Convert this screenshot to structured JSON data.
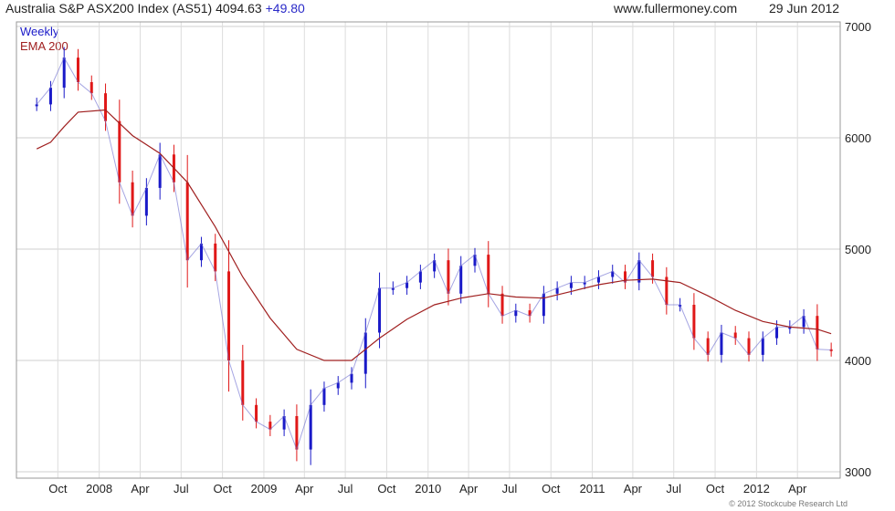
{
  "header": {
    "title": "Australia S&P ASX200 Index (AS51) 4094.63",
    "change": "+49.80",
    "site": "www.fullermoney.com",
    "date": "29 Jun 2012",
    "title_color": "#222222",
    "change_color": "#2a2ac8"
  },
  "legend": {
    "weekly": "Weekly",
    "weekly_color": "#1a1ac8",
    "ema": "EMA 200",
    "ema_color": "#a02020"
  },
  "copyright": "© 2012 Stockcube Research Ltd",
  "chart_data": {
    "type": "line",
    "subtype": "weekly candlestick chart with EMA 200 overlay",
    "title": "Australia S&P ASX200 Index (AS51) 4094.63 +49.80",
    "x_tick_labels": [
      "Oct",
      "2008",
      "Apr",
      "Jul",
      "Oct",
      "2009",
      "Apr",
      "Jul",
      "Oct",
      "2010",
      "Apr",
      "Jul",
      "Oct",
      "2011",
      "Apr",
      "Jul",
      "Oct",
      "2012",
      "Apr"
    ],
    "y_tick_labels": [
      "3000",
      "4000",
      "5000",
      "6000",
      "7000"
    ],
    "y_axis_side": "right",
    "ylim": [
      3000,
      7000
    ],
    "grid": true,
    "up_color": "#1a1ac8",
    "down_color": "#e01818",
    "ema_color": "#a02020",
    "series": [
      {
        "name": "Weekly",
        "x": [
          "2007-08",
          "2007-09",
          "2007-10",
          "2007-11",
          "2007-12",
          "2008-01",
          "2008-02",
          "2008-03",
          "2008-04",
          "2008-05",
          "2008-06",
          "2008-07",
          "2008-08",
          "2008-09",
          "2008-10",
          "2008-11",
          "2008-12",
          "2009-01",
          "2009-02",
          "2009-03",
          "2009-04",
          "2009-05",
          "2009-06",
          "2009-07",
          "2009-08",
          "2009-09",
          "2009-10",
          "2009-11",
          "2009-12",
          "2010-01",
          "2010-02",
          "2010-03",
          "2010-04",
          "2010-05",
          "2010-06",
          "2010-07",
          "2010-08",
          "2010-09",
          "2010-10",
          "2010-11",
          "2010-12",
          "2011-01",
          "2011-02",
          "2011-03",
          "2011-04",
          "2011-05",
          "2011-06",
          "2011-07",
          "2011-08",
          "2011-09",
          "2011-10",
          "2011-11",
          "2011-12",
          "2012-01",
          "2012-02",
          "2012-03",
          "2012-04",
          "2012-05",
          "2012-06"
        ],
        "values": [
          6300,
          6450,
          6720,
          6500,
          6400,
          6150,
          5600,
          5300,
          5550,
          5850,
          5600,
          4900,
          5050,
          4800,
          4000,
          3600,
          3450,
          3380,
          3500,
          3200,
          3600,
          3750,
          3800,
          3880,
          4250,
          4650,
          4650,
          4700,
          4800,
          4900,
          4600,
          4850,
          4950,
          4600,
          4400,
          4450,
          4400,
          4600,
          4650,
          4700,
          4700,
          4750,
          4800,
          4700,
          4900,
          4750,
          4500,
          4500,
          4200,
          4050,
          4250,
          4200,
          4050,
          4200,
          4300,
          4300,
          4400,
          4100,
          4094.63
        ]
      },
      {
        "name": "EMA 200",
        "x": [
          "2007-08",
          "2007-09",
          "2007-10",
          "2007-11",
          "2008-01",
          "2008-03",
          "2008-05",
          "2008-07",
          "2008-09",
          "2008-11",
          "2009-01",
          "2009-03",
          "2009-05",
          "2009-07",
          "2009-09",
          "2009-11",
          "2010-01",
          "2010-03",
          "2010-05",
          "2010-07",
          "2010-09",
          "2010-11",
          "2011-01",
          "2011-03",
          "2011-05",
          "2011-07",
          "2011-09",
          "2011-11",
          "2012-01",
          "2012-03",
          "2012-05",
          "2012-06"
        ],
        "values": [
          5900,
          5960,
          6100,
          6230,
          6250,
          6020,
          5860,
          5600,
          5200,
          4750,
          4380,
          4100,
          4000,
          4000,
          4200,
          4370,
          4500,
          4560,
          4600,
          4570,
          4560,
          4620,
          4680,
          4720,
          4730,
          4700,
          4580,
          4450,
          4350,
          4300,
          4280,
          4240
        ]
      }
    ]
  }
}
